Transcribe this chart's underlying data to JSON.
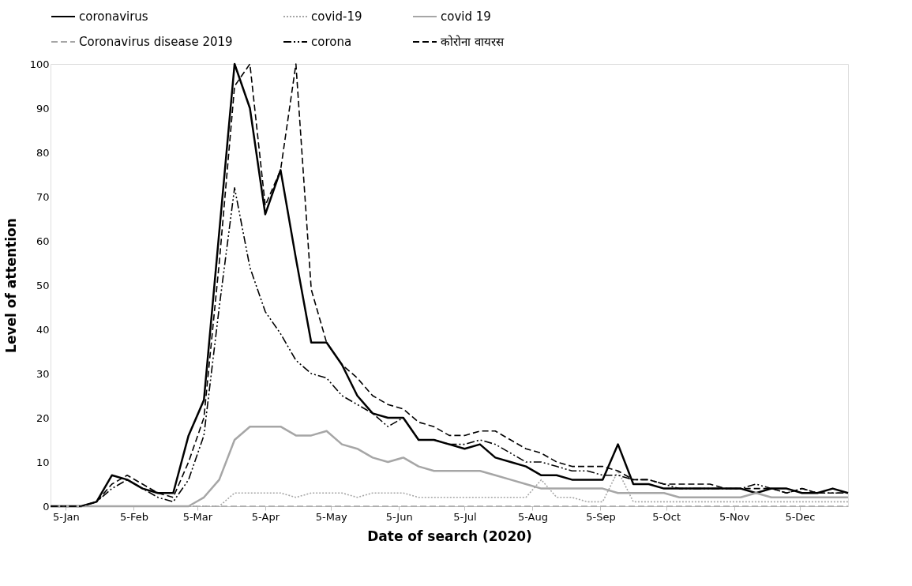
{
  "chart_data": {
    "type": "line",
    "xlabel": "Date of search (2020)",
    "ylabel": "Level of attention",
    "x": [
      "2019-12-29",
      "2020-01-05",
      "2020-01-12",
      "2020-01-19",
      "2020-01-26",
      "2020-02-02",
      "2020-02-09",
      "2020-02-16",
      "2020-02-23",
      "2020-03-01",
      "2020-03-08",
      "2020-03-15",
      "2020-03-22",
      "2020-03-29",
      "2020-04-05",
      "2020-04-12",
      "2020-04-19",
      "2020-04-26",
      "2020-05-03",
      "2020-05-10",
      "2020-05-17",
      "2020-05-24",
      "2020-05-31",
      "2020-06-07",
      "2020-06-14",
      "2020-06-21",
      "2020-06-28",
      "2020-07-05",
      "2020-07-12",
      "2020-07-19",
      "2020-07-26",
      "2020-08-02",
      "2020-08-09",
      "2020-08-16",
      "2020-08-23",
      "2020-08-30",
      "2020-09-06",
      "2020-09-13",
      "2020-09-20",
      "2020-09-27",
      "2020-10-04",
      "2020-10-11",
      "2020-10-18",
      "2020-10-25",
      "2020-11-01",
      "2020-11-08",
      "2020-11-15",
      "2020-11-22",
      "2020-11-29",
      "2020-12-06",
      "2020-12-13",
      "2020-12-20",
      "2020-12-27"
    ],
    "series": [
      {
        "name": "coronavirus",
        "color": "#000000",
        "line_style": "solid",
        "values": [
          0,
          0,
          0,
          1,
          7,
          6,
          4,
          3,
          3,
          16,
          24,
          62,
          100,
          90,
          66,
          76,
          56,
          37,
          37,
          32,
          25,
          21,
          20,
          20,
          15,
          15,
          14,
          13,
          14,
          11,
          10,
          9,
          7,
          7,
          6,
          6,
          6,
          14,
          5,
          5,
          4,
          4,
          4,
          4,
          4,
          4,
          3,
          4,
          4,
          3,
          3,
          4,
          3
        ]
      },
      {
        "name": "covid-19",
        "color": "#a6a6a6",
        "line_style": "dotted",
        "values": [
          0,
          0,
          0,
          0,
          0,
          0,
          0,
          0,
          0,
          0,
          0,
          0,
          3,
          3,
          3,
          3,
          2,
          3,
          3,
          3,
          2,
          3,
          3,
          3,
          2,
          2,
          2,
          2,
          2,
          2,
          2,
          2,
          6,
          2,
          2,
          1,
          1,
          8,
          1,
          1,
          1,
          1,
          1,
          1,
          1,
          1,
          1,
          1,
          1,
          1,
          1,
          1,
          1
        ]
      },
      {
        "name": "covid 19",
        "color": "#a6a6a6",
        "line_style": "solid",
        "values": [
          0,
          0,
          0,
          0,
          0,
          0,
          0,
          0,
          0,
          0,
          2,
          6,
          15,
          18,
          18,
          18,
          16,
          16,
          17,
          14,
          13,
          11,
          10,
          11,
          9,
          8,
          8,
          8,
          8,
          7,
          6,
          5,
          4,
          4,
          4,
          4,
          4,
          3,
          3,
          3,
          3,
          2,
          2,
          2,
          2,
          2,
          3,
          2,
          2,
          2,
          2,
          2,
          2
        ]
      },
      {
        "name": "Coronavirus disease 2019",
        "color": "#a6a6a6",
        "line_style": "dashed",
        "values": [
          0,
          0,
          0,
          0,
          0,
          0,
          0,
          0,
          0,
          0,
          0,
          0,
          0,
          0,
          0,
          0,
          0,
          0,
          0,
          0,
          0,
          0,
          0,
          0,
          0,
          0,
          0,
          0,
          0,
          0,
          0,
          0,
          0,
          0,
          0,
          0,
          0,
          0,
          0,
          0,
          0,
          0,
          0,
          0,
          0,
          0,
          0,
          0,
          0,
          0,
          0,
          0,
          0
        ]
      },
      {
        "name": "corona",
        "color": "#000000",
        "line_style": "dashdot",
        "values": [
          0,
          0,
          0,
          1,
          4,
          6,
          4,
          2,
          1,
          6,
          16,
          45,
          72,
          54,
          44,
          39,
          33,
          30,
          29,
          25,
          23,
          21,
          18,
          20,
          15,
          15,
          14,
          14,
          15,
          14,
          12,
          10,
          10,
          9,
          8,
          8,
          7,
          7,
          6,
          6,
          5,
          4,
          4,
          4,
          4,
          4,
          5,
          4,
          3,
          4,
          3,
          3,
          3
        ]
      },
      {
        "name": "कोरोना वायरस",
        "color": "#000000",
        "line_style": "dashed",
        "values": [
          0,
          0,
          0,
          1,
          5,
          7,
          5,
          3,
          2,
          10,
          20,
          55,
          95,
          100,
          68,
          76,
          100,
          49,
          37,
          32,
          29,
          25,
          23,
          22,
          19,
          18,
          16,
          16,
          17,
          17,
          15,
          13,
          12,
          10,
          9,
          9,
          9,
          8,
          6,
          6,
          5,
          5,
          5,
          5,
          4,
          4,
          4,
          4,
          3,
          4,
          3,
          3,
          3
        ]
      }
    ],
    "xlim": [
      "2019-12-29",
      "2020-12-27"
    ],
    "xticks": [
      {
        "value": "2020-01-05",
        "label": "5-Jan"
      },
      {
        "value": "2020-02-05",
        "label": "5-Feb"
      },
      {
        "value": "2020-03-05",
        "label": "5-Mar"
      },
      {
        "value": "2020-04-05",
        "label": "5-Apr"
      },
      {
        "value": "2020-05-05",
        "label": "5-May"
      },
      {
        "value": "2020-06-05",
        "label": "5-Jun"
      },
      {
        "value": "2020-07-05",
        "label": "5-Jul"
      },
      {
        "value": "2020-08-05",
        "label": "5-Aug"
      },
      {
        "value": "2020-09-05",
        "label": "5-Sep"
      },
      {
        "value": "2020-10-05",
        "label": "5-Oct"
      },
      {
        "value": "2020-11-05",
        "label": "5-Nov"
      },
      {
        "value": "2020-12-05",
        "label": "5-Dec"
      }
    ],
    "ylim": [
      0,
      100
    ],
    "yticks": [
      0,
      10,
      20,
      30,
      40,
      50,
      60,
      70,
      80,
      90,
      100
    ],
    "grid": false,
    "legend": "top",
    "marker": "none"
  }
}
